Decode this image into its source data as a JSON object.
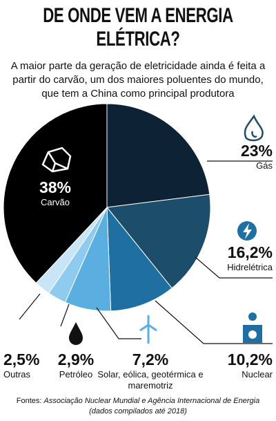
{
  "chart_data": {
    "type": "pie",
    "title": "DE ONDE VEM A ENERGIA ELÉTRICA?",
    "subtitle": "A maior parte da geração de eletricidade ainda é feita a partir do carvão, um dos maiores poluentes do mundo, que tem a China como principal produtora",
    "categories": [
      "Gás",
      "Hidrelétrica",
      "Nuclear",
      "Solar, eólica, geotérmica e maremotriz",
      "Petróleo",
      "Outras",
      "Carvão"
    ],
    "values": [
      23,
      16.2,
      10.2,
      7.2,
      2.9,
      2.5,
      38
    ],
    "value_labels": [
      "23%",
      "16,2%",
      "10,2%",
      "7,2%",
      "2,9%",
      "2,5%",
      "38%"
    ],
    "colors": [
      "#0e2235",
      "#1c4d6b",
      "#1f6fa3",
      "#5aaee0",
      "#8fcbee",
      "#c7e5f6",
      "#000000"
    ],
    "source_prefix": "Fontes:",
    "source": "Associação Nuclear Mundial e Agência Internacional de Energia (dados compilados até 2018)"
  }
}
